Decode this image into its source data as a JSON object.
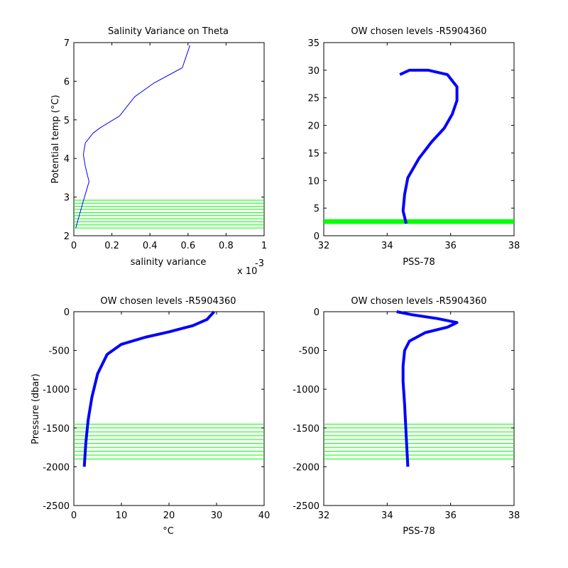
{
  "colors": {
    "profile": "#0000ff",
    "levels": "#00ff00",
    "axis": "#000000",
    "background": "#ffffff"
  },
  "chart_data": [
    {
      "type": "line",
      "title": "Salinity Variance on Theta",
      "xlabel": "salinity variance",
      "x_exponent": "x 10",
      "x_exponent_power": "-3",
      "ylabel": "Potential temp (°C)",
      "xlim": [
        0,
        1
      ],
      "ylim": [
        2,
        7
      ],
      "xticks": [
        "0",
        "0.2",
        "0.4",
        "0.6",
        "0.8",
        "1"
      ],
      "yticks": [
        "2",
        "3",
        "4",
        "5",
        "6",
        "7"
      ],
      "series": [
        {
          "x": [
            0.01,
            0.05,
            0.08,
            0.06,
            0.05,
            0.06,
            0.1,
            0.14,
            0.24,
            0.28,
            0.32,
            0.42,
            0.57,
            0.61
          ],
          "y": [
            2.2,
            2.9,
            3.4,
            3.8,
            4.1,
            4.4,
            4.65,
            4.8,
            5.1,
            5.35,
            5.6,
            5.95,
            6.35,
            6.93
          ]
        }
      ],
      "levels_axis": "y",
      "levels": [
        2.2,
        2.28,
        2.36,
        2.44,
        2.52,
        2.6,
        2.68,
        2.76,
        2.84,
        2.92
      ],
      "grid": false
    },
    {
      "type": "line",
      "title": "OW chosen levels -R5904360",
      "xlabel": "PSS-78",
      "ylabel": "",
      "xlim": [
        32,
        38
      ],
      "ylim": [
        0,
        35
      ],
      "xticks": [
        "32",
        "34",
        "36",
        "38"
      ],
      "yticks": [
        "0",
        "5",
        "10",
        "15",
        "20",
        "25",
        "30",
        "35"
      ],
      "series": [
        {
          "x": [
            34.6,
            34.5,
            34.55,
            34.65,
            35.0,
            35.4,
            35.8,
            36.05,
            36.2,
            36.2,
            35.9,
            35.3,
            34.7,
            34.4
          ],
          "y": [
            2.2,
            4.5,
            7.5,
            10.5,
            14.0,
            17.0,
            19.5,
            22.0,
            24.5,
            27.0,
            29.2,
            30.0,
            30.0,
            29.2
          ]
        }
      ],
      "levels_axis": "y",
      "levels": [
        2.2,
        2.28,
        2.36,
        2.44,
        2.52,
        2.6,
        2.68,
        2.76,
        2.84,
        2.92
      ],
      "grid": false
    },
    {
      "type": "line",
      "title": "OW chosen levels -R5904360",
      "xlabel": "°C",
      "ylabel": "Pressure (dbar)",
      "xlim": [
        0,
        40
      ],
      "ylim": [
        -2500,
        0
      ],
      "xticks": [
        "0",
        "10",
        "20",
        "30",
        "40"
      ],
      "yticks": [
        "-2500",
        "-2000",
        "-1500",
        "-1000",
        "-500",
        "0"
      ],
      "series": [
        {
          "x": [
            2.2,
            2.5,
            3.0,
            3.8,
            5.0,
            7.0,
            10.0,
            15.0,
            20.0,
            25.0,
            28.0,
            29.5
          ],
          "y": [
            -2000,
            -1700,
            -1400,
            -1100,
            -800,
            -550,
            -420,
            -330,
            -260,
            -180,
            -100,
            0
          ]
        }
      ],
      "levels_axis": "y",
      "levels": [
        -1450,
        -1500,
        -1550,
        -1600,
        -1650,
        -1700,
        -1750,
        -1800,
        -1850,
        -1900
      ],
      "grid": false
    },
    {
      "type": "line",
      "title": "OW chosen levels -R5904360",
      "xlabel": "PSS-78",
      "ylabel": "",
      "xlim": [
        32,
        38
      ],
      "ylim": [
        -2500,
        0
      ],
      "xticks": [
        "32",
        "34",
        "36",
        "38"
      ],
      "yticks": [
        "-2500",
        "-2000",
        "-1500",
        "-1000",
        "-500",
        "0"
      ],
      "series": [
        {
          "x": [
            34.65,
            34.6,
            34.55,
            34.5,
            34.5,
            34.55,
            34.7,
            35.2,
            35.9,
            36.2,
            35.6,
            34.8,
            34.3
          ],
          "y": [
            -2000,
            -1600,
            -1200,
            -900,
            -700,
            -500,
            -380,
            -270,
            -200,
            -140,
            -90,
            -40,
            0
          ]
        }
      ],
      "levels_axis": "y",
      "levels": [
        -1450,
        -1500,
        -1550,
        -1600,
        -1650,
        -1700,
        -1750,
        -1800,
        -1850,
        -1900
      ],
      "grid": false
    }
  ]
}
